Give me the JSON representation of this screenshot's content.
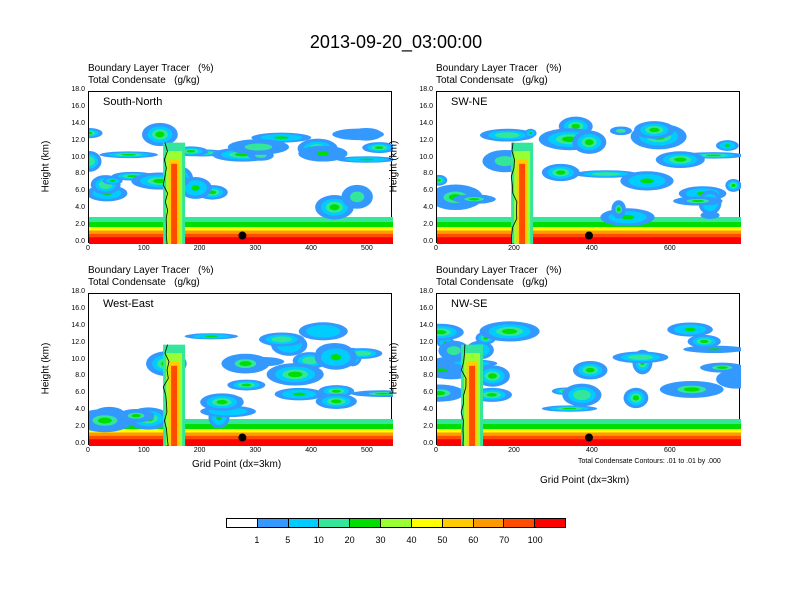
{
  "title": "2013-09-20_03:00:00",
  "colors": [
    "#ffffff",
    "#3399ff",
    "#00ccff",
    "#33e699",
    "#00dd00",
    "#99ff33",
    "#ffff00",
    "#ffcc00",
    "#ff9900",
    "#ff4d00",
    "#ff0000"
  ],
  "colorbar_labels": [
    "1",
    "5",
    "10",
    "20",
    "30",
    "40",
    "50",
    "60",
    "70",
    "100"
  ],
  "note": "Total Condensate Contours: .01 to .01 by .000",
  "chart_data": [
    {
      "type": "heatmap",
      "panel": "South-North",
      "header": [
        "Boundary Layer Tracer   (%)",
        "Total Condensate   (g/kg)"
      ],
      "xlabel": "",
      "ylabel": "Height (km)",
      "xlim": [
        0,
        545
      ],
      "ylim": [
        0,
        18
      ],
      "xticks": [
        "0",
        "100",
        "200",
        "300",
        "400",
        "500"
      ],
      "yticks": [
        "0.0",
        "2.0",
        "4.0",
        "6.0",
        "8.0",
        "10.0",
        "12.0",
        "14.0",
        "16.0",
        "18.0"
      ],
      "marker_x": 275,
      "marker_y": 1.0
    },
    {
      "type": "heatmap",
      "panel": "SW-NE",
      "header": [
        "Boundary Layer Tracer   (%)",
        "Total Condensate   (g/kg)"
      ],
      "xlabel": "",
      "ylabel": "Height (km)",
      "xlim": [
        0,
        780
      ],
      "ylim": [
        0,
        18
      ],
      "xticks": [
        "0",
        "200",
        "400",
        "600"
      ],
      "yticks": [
        "0.0",
        "2.0",
        "4.0",
        "6.0",
        "8.0",
        "10.0",
        "12.0",
        "14.0",
        "16.0",
        "18.0"
      ],
      "marker_x": 390,
      "marker_y": 1.0
    },
    {
      "type": "heatmap",
      "panel": "West-East",
      "header": [
        "Boundary Layer Tracer   (%)",
        "Total Condensate   (g/kg)"
      ],
      "xlabel": "Grid Point (dx=3km)",
      "ylabel": "Height (km)",
      "xlim": [
        0,
        545
      ],
      "ylim": [
        0,
        18
      ],
      "xticks": [
        "0",
        "100",
        "200",
        "300",
        "400",
        "500"
      ],
      "yticks": [
        "0.0",
        "2.0",
        "4.0",
        "6.0",
        "8.0",
        "10.0",
        "12.0",
        "14.0",
        "16.0",
        "18.0"
      ],
      "marker_x": 275,
      "marker_y": 1.0
    },
    {
      "type": "heatmap",
      "panel": "NW-SE",
      "header": [
        "Boundary Layer Tracer   (%)",
        "Total Condensate   (g/kg)"
      ],
      "xlabel": "Grid Point (dx=3km)",
      "ylabel": "Height (km)",
      "xlim": [
        0,
        780
      ],
      "ylim": [
        0,
        18
      ],
      "xticks": [
        "0",
        "200",
        "400",
        "600"
      ],
      "yticks": [
        "0.0",
        "2.0",
        "4.0",
        "6.0",
        "8.0",
        "10.0",
        "12.0",
        "14.0",
        "16.0",
        "18.0"
      ],
      "marker_x": 390,
      "marker_y": 1.0
    }
  ]
}
